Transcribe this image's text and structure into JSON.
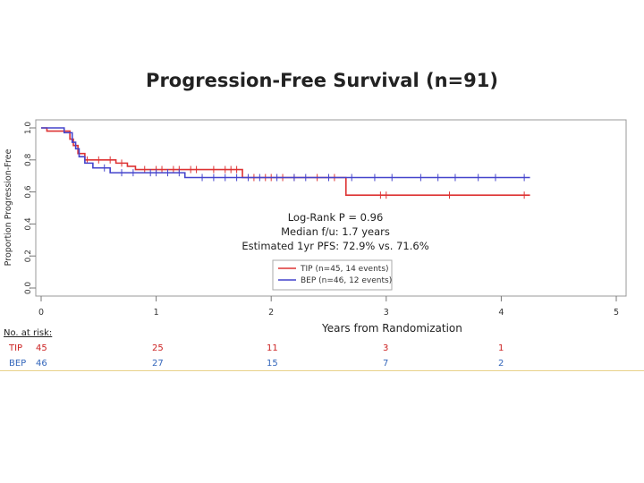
{
  "chart_data": {
    "type": "line",
    "title": "Progression-Free Survival (n=91)",
    "xlabel": "Years from Randomization",
    "ylabel": "Proportion Progression-Free",
    "xlim": [
      0,
      5
    ],
    "ylim": [
      0,
      1
    ],
    "xticks": [
      "0",
      "1",
      "2",
      "3",
      "4",
      "5"
    ],
    "yticks": [
      "0.0",
      "0.2",
      "0.4",
      "0.6",
      "0.8",
      "1.0"
    ],
    "annotations": [
      "Log-Rank P = 0.96",
      "Median f/u: 1.7 years",
      "Estimated 1yr PFS: 72.9% vs. 71.6%"
    ],
    "legend": [
      "TIP (n=45, 14 events)",
      "BEP (n=46, 12 events)"
    ],
    "series": [
      {
        "name": "TIP",
        "color": "#dd3333",
        "steps": [
          [
            0,
            1.0
          ],
          [
            0.05,
            0.98
          ],
          [
            0.25,
            0.93
          ],
          [
            0.28,
            0.89
          ],
          [
            0.32,
            0.84
          ],
          [
            0.38,
            0.8
          ],
          [
            0.65,
            0.78
          ],
          [
            0.75,
            0.76
          ],
          [
            0.82,
            0.74
          ],
          [
            1.75,
            0.69
          ],
          [
            2.65,
            0.58
          ],
          [
            4.25,
            0.58
          ]
        ],
        "censors": [
          0.4,
          0.5,
          0.6,
          0.7,
          0.9,
          1.0,
          1.05,
          1.15,
          1.2,
          1.3,
          1.35,
          1.5,
          1.6,
          1.65,
          1.7,
          1.85,
          1.95,
          2.0,
          2.1,
          2.2,
          2.4,
          2.5,
          2.55,
          2.95,
          3.0,
          3.55,
          4.2
        ]
      },
      {
        "name": "BEP",
        "color": "#4444cc",
        "steps": [
          [
            0,
            1.0
          ],
          [
            0.2,
            0.97
          ],
          [
            0.27,
            0.91
          ],
          [
            0.3,
            0.87
          ],
          [
            0.33,
            0.82
          ],
          [
            0.38,
            0.78
          ],
          [
            0.45,
            0.75
          ],
          [
            0.6,
            0.72
          ],
          [
            1.25,
            0.69
          ],
          [
            4.25,
            0.69
          ]
        ],
        "censors": [
          0.55,
          0.7,
          0.8,
          0.95,
          1.0,
          1.1,
          1.2,
          1.4,
          1.5,
          1.6,
          1.7,
          1.8,
          1.9,
          2.05,
          2.2,
          2.3,
          2.5,
          2.7,
          2.9,
          3.05,
          3.3,
          3.45,
          3.6,
          3.8,
          3.95,
          4.2
        ]
      }
    ]
  },
  "risk_table": {
    "header": "No. at risk:",
    "rows": [
      {
        "name": "TIP",
        "color": "#cc2222",
        "values": [
          "45",
          "25",
          "11",
          "3",
          "1"
        ]
      },
      {
        "name": "BEP",
        "color": "#3366bb",
        "values": [
          "46",
          "27",
          "15",
          "7",
          "2"
        ]
      }
    ]
  }
}
